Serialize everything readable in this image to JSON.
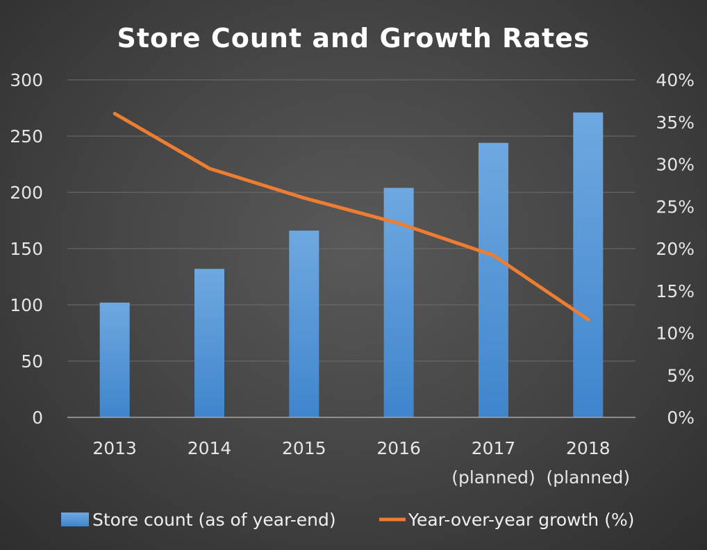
{
  "colors": {
    "bar": "#5b9bd5",
    "line": "#ed7d31"
  },
  "chart_data": {
    "type": "bar",
    "title": "Store Count and Growth Rates",
    "categories": [
      [
        "2013"
      ],
      [
        "2014"
      ],
      [
        "2015"
      ],
      [
        "2016"
      ],
      [
        "2017",
        "(planned)"
      ],
      [
        "2018",
        "(planned)"
      ]
    ],
    "series": [
      {
        "name": "Store count (as of year-end)",
        "type": "bar",
        "axis": "left",
        "values": [
          102,
          132,
          166,
          204,
          244,
          271
        ]
      },
      {
        "name": "Year-over-year growth (%)",
        "type": "line",
        "axis": "right",
        "values": [
          36,
          29.5,
          26,
          23,
          19.2,
          11.6
        ]
      }
    ],
    "y_left": {
      "lim": [
        0,
        300
      ],
      "ticks": [
        0,
        50,
        100,
        150,
        200,
        250,
        300
      ],
      "tick_labels": [
        "0",
        "50",
        "100",
        "150",
        "200",
        "250",
        "300"
      ]
    },
    "y_right": {
      "lim": [
        0,
        40
      ],
      "ticks": [
        0,
        5,
        10,
        15,
        20,
        25,
        30,
        35,
        40
      ],
      "tick_labels": [
        "0%",
        "5%",
        "10%",
        "15%",
        "20%",
        "25%",
        "30%",
        "35%",
        "40%"
      ]
    },
    "grid": true,
    "legend": "bottom"
  }
}
